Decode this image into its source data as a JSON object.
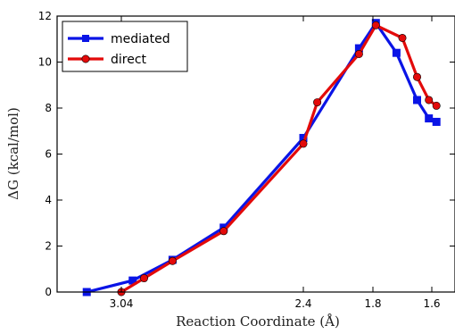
{
  "chart_data": {
    "type": "line",
    "xlabel": "Reaction Coordinate (Å)",
    "ylabel": "ΔG (kcal/mol)",
    "x_axis_direction": "reversed",
    "ylim": [
      0,
      12
    ],
    "y_ticks": [
      0,
      2,
      4,
      6,
      8,
      10,
      12
    ],
    "x_ticks": [
      {
        "label": "3.04",
        "value": 3.04
      },
      {
        "label": "2.4",
        "value": 2.4
      },
      {
        "label": "1.8",
        "value": 1.8
      },
      {
        "label": "1.6",
        "value": 1.6
      }
    ],
    "grid": false,
    "legend_position": "top-left",
    "series": [
      {
        "name": "mediated",
        "color": "#0a14e6",
        "marker": "square",
        "points": [
          [
            3.18,
            0.0
          ],
          [
            3.0,
            0.5
          ],
          [
            2.86,
            1.4
          ],
          [
            2.68,
            2.8
          ],
          [
            2.4,
            6.7
          ],
          [
            1.92,
            10.6
          ],
          [
            1.79,
            11.7
          ],
          [
            1.72,
            10.4
          ],
          [
            1.65,
            8.35
          ],
          [
            1.61,
            7.55
          ],
          [
            1.58,
            7.4
          ]
        ]
      },
      {
        "name": "direct",
        "color": "#e30a0a",
        "marker": "circle",
        "points": [
          [
            3.04,
            0.0
          ],
          [
            2.96,
            0.6
          ],
          [
            2.86,
            1.35
          ],
          [
            2.68,
            2.65
          ],
          [
            2.4,
            6.45
          ],
          [
            2.28,
            8.25
          ],
          [
            1.92,
            10.35
          ],
          [
            1.79,
            11.6
          ],
          [
            1.7,
            11.05
          ],
          [
            1.65,
            9.35
          ],
          [
            1.61,
            8.35
          ],
          [
            1.58,
            8.1
          ]
        ]
      }
    ]
  }
}
